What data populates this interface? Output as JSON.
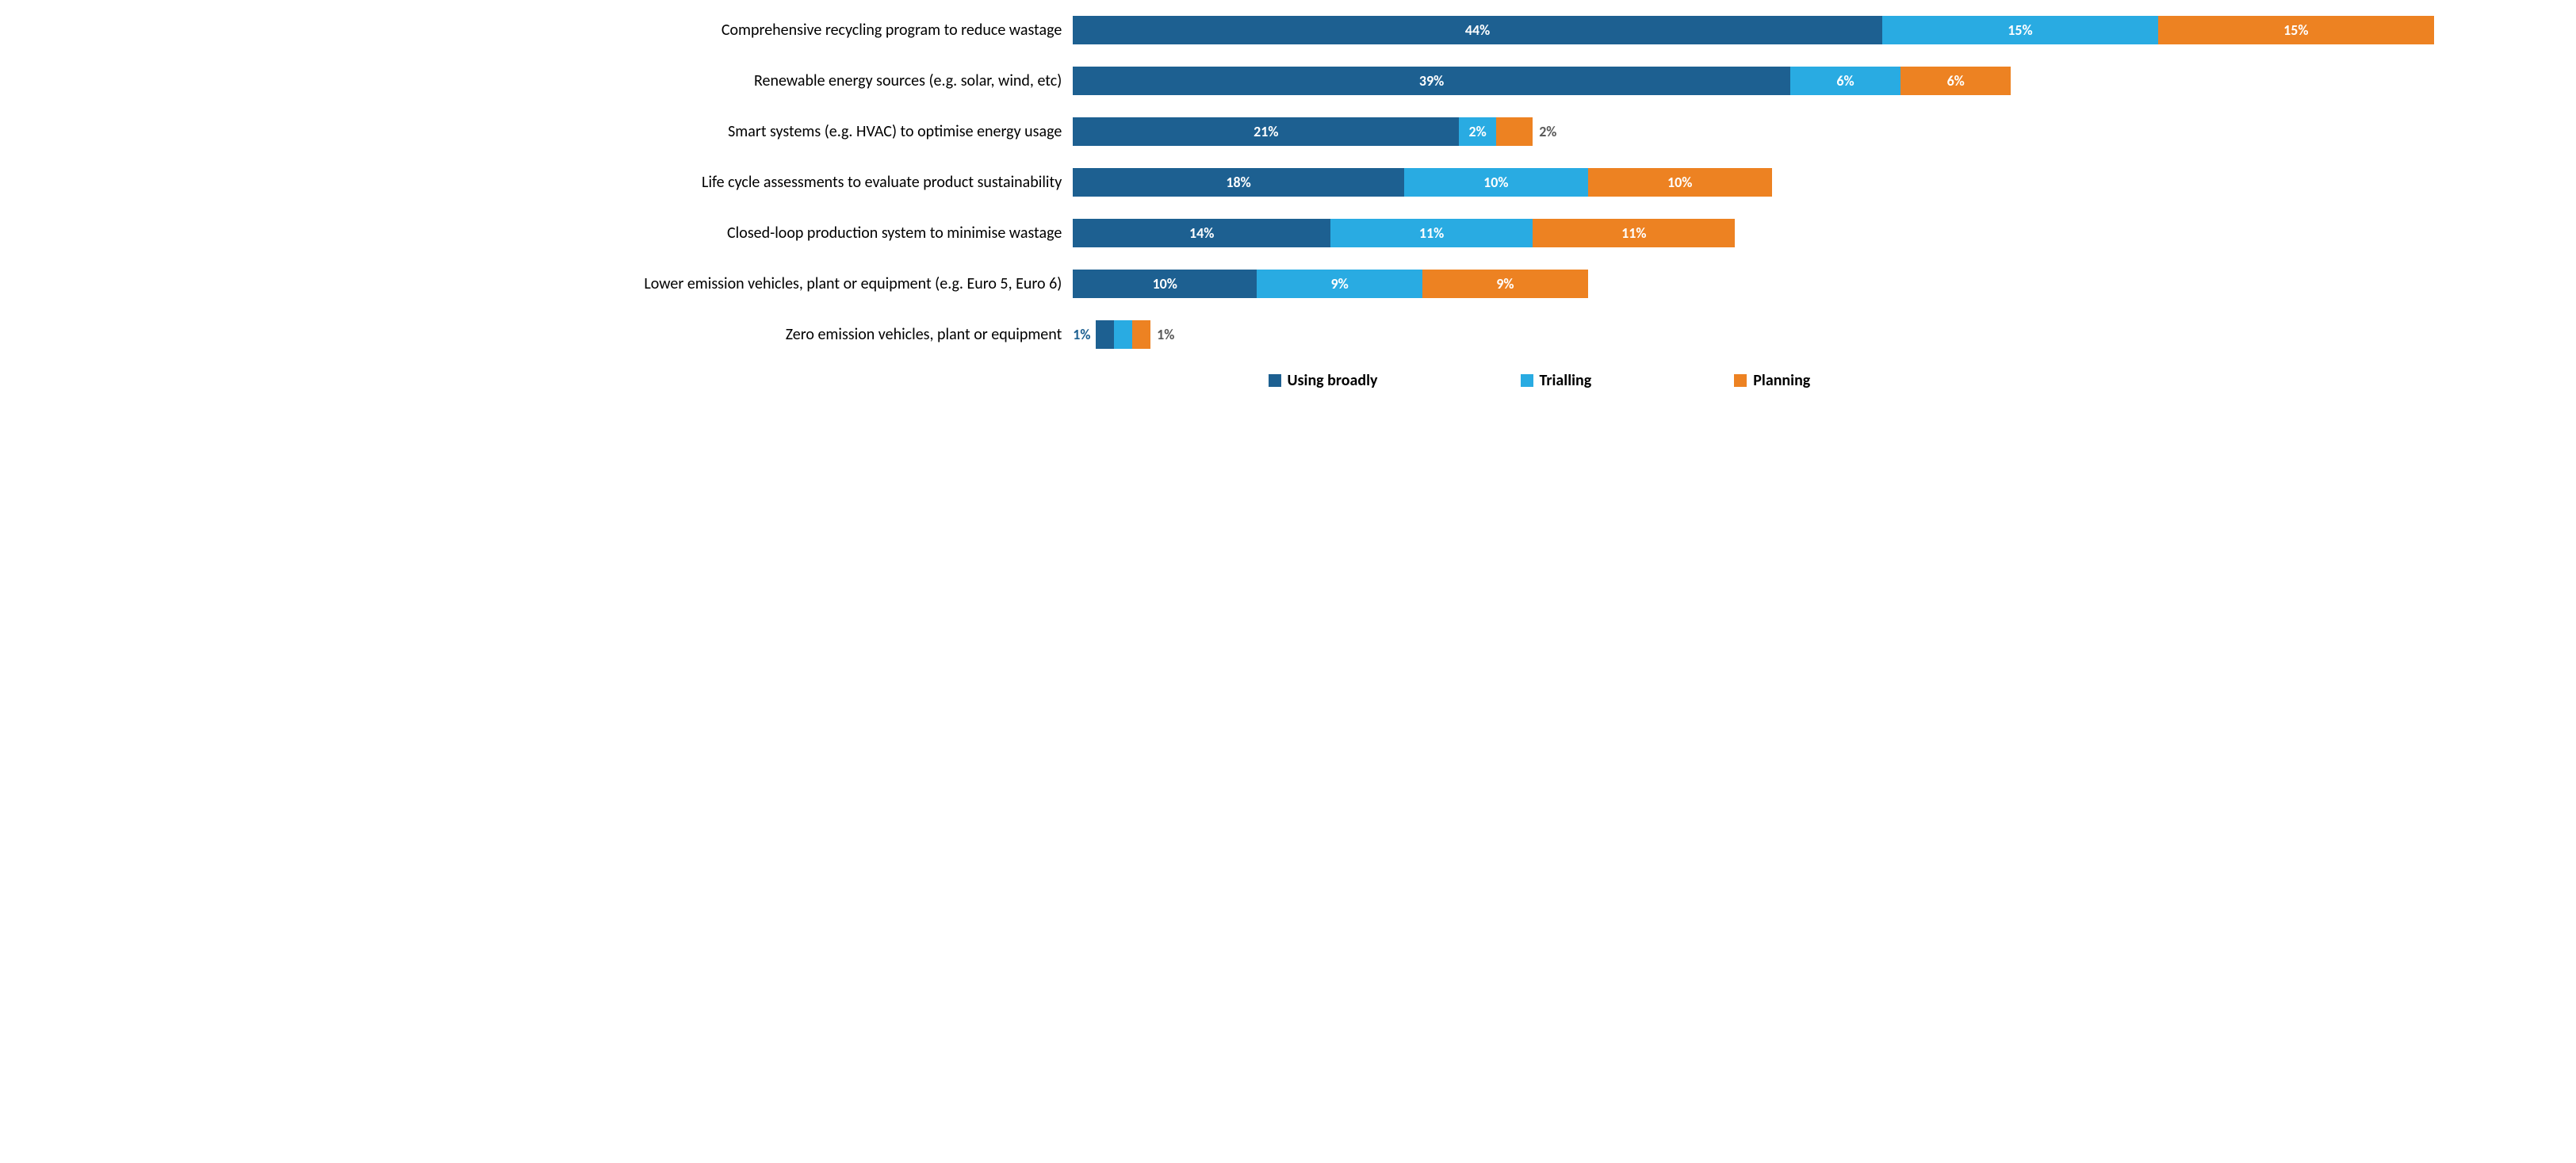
{
  "chart": {
    "type": "stacked-bar-horizontal",
    "max_total": 80,
    "background_color": "#ffffff",
    "label_fontsize": 20,
    "value_fontsize": 18,
    "value_fontweight": 700,
    "series": [
      {
        "key": "using_broadly",
        "label": "Using broadly",
        "color": "#1d6091"
      },
      {
        "key": "trialling",
        "label": "Trialling",
        "color": "#29abe2"
      },
      {
        "key": "planning",
        "label": "Planning",
        "color": "#ed8222"
      }
    ],
    "outside_text_colors": {
      "using_broadly": "#1d6091",
      "trialling": "#29abe2",
      "planning": "#595959"
    },
    "categories": [
      {
        "label": "Comprehensive recycling program to reduce wastage",
        "values": {
          "using_broadly": 44,
          "trialling": 15,
          "planning": 15
        },
        "outside": []
      },
      {
        "label": "Renewable energy sources (e.g. solar, wind, etc)",
        "values": {
          "using_broadly": 39,
          "trialling": 6,
          "planning": 6
        },
        "outside": []
      },
      {
        "label": "Smart systems (e.g. HVAC) to optimise energy usage",
        "values": {
          "using_broadly": 21,
          "trialling": 2,
          "planning": 2
        },
        "outside": [
          "planning"
        ]
      },
      {
        "label": "Life cycle assessments to evaluate product sustainability",
        "values": {
          "using_broadly": 18,
          "trialling": 10,
          "planning": 10
        },
        "outside": []
      },
      {
        "label": "Closed-loop production system to minimise wastage",
        "values": {
          "using_broadly": 14,
          "trialling": 11,
          "planning": 11
        },
        "outside": []
      },
      {
        "label": "Lower emission vehicles, plant or equipment (e.g. Euro 5, Euro 6)",
        "values": {
          "using_broadly": 10,
          "trialling": 9,
          "planning": 9
        },
        "outside": []
      },
      {
        "label": "Zero emission vehicles, plant or equipment",
        "values": {
          "using_broadly": 1,
          "trialling": 1,
          "planning": 1
        },
        "outside": [
          "using_broadly",
          "planning"
        ],
        "hide": [
          "trialling"
        ]
      }
    ]
  }
}
